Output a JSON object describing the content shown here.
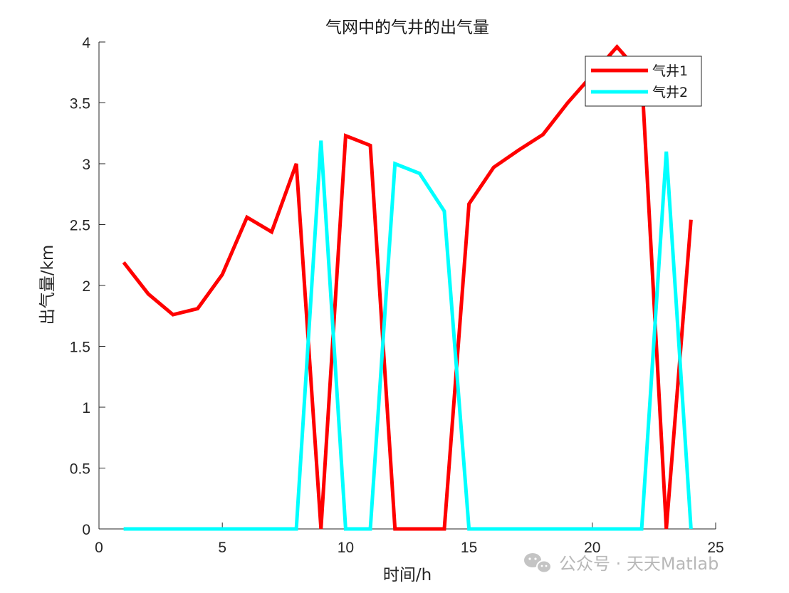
{
  "chart_data": {
    "type": "line",
    "title": "气网中的气井的出气量",
    "xlabel": "时间/h",
    "ylabel": "出气量/km",
    "xlim": [
      0,
      25
    ],
    "ylim": [
      0,
      4
    ],
    "xticks": [
      0,
      5,
      10,
      15,
      20,
      25
    ],
    "yticks": [
      0,
      0.5,
      1,
      1.5,
      2,
      2.5,
      3,
      3.5,
      4
    ],
    "ytick_labels": [
      "0",
      "0.5",
      "1",
      "1.5",
      "2",
      "2.5",
      "3",
      "3.5",
      "4"
    ],
    "grid": false,
    "legend_position": "top-right",
    "x": [
      1,
      2,
      3,
      4,
      5,
      6,
      7,
      8,
      9,
      10,
      11,
      12,
      13,
      14,
      15,
      16,
      17,
      18,
      19,
      20,
      21,
      22,
      23,
      24
    ],
    "series": [
      {
        "name": "气井1",
        "color": "#ff0000",
        "values": [
          2.19,
          1.93,
          1.76,
          1.81,
          2.09,
          2.56,
          2.44,
          3.0,
          0,
          3.23,
          3.15,
          0,
          0,
          0,
          2.67,
          2.97,
          3.11,
          3.24,
          3.5,
          3.73,
          3.96,
          3.73,
          0,
          2.54
        ]
      },
      {
        "name": "气井2",
        "color": "#00ffff",
        "values": [
          0,
          0,
          0,
          0,
          0,
          0,
          0,
          0,
          3.19,
          0,
          0,
          3.0,
          2.92,
          2.61,
          0,
          0,
          0,
          0,
          0,
          0,
          0,
          0,
          3.1,
          0
        ]
      }
    ]
  },
  "watermark": {
    "text": "公众号 · 天天Matlab",
    "icon": "wechat-icon"
  }
}
